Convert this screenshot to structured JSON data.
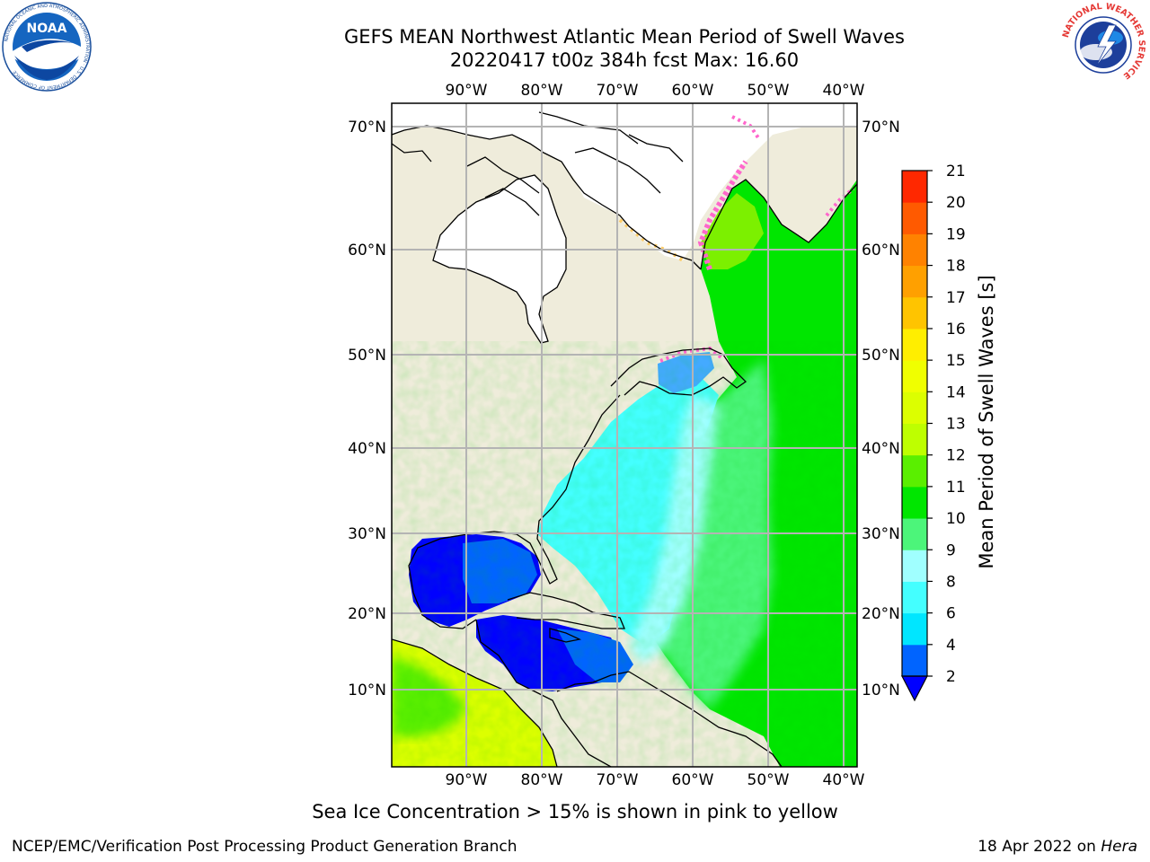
{
  "header": {
    "title_line1": "GEFS MEAN Northwest Atlantic Mean Period of Swell Waves",
    "title_line2": "20220417 t00z 384h fcst   Max: 16.60"
  },
  "logos": {
    "left": {
      "icon": "noaa-logo",
      "text": "NOAA"
    },
    "right": {
      "icon": "nws-logo",
      "text": "NATIONAL WEATHER SERVICE"
    }
  },
  "map": {
    "lon_ticks": [
      "90°W",
      "80°W",
      "70°W",
      "60°W",
      "50°W",
      "40°W"
    ],
    "lat_ticks": [
      "70°N",
      "60°N",
      "50°N",
      "40°N",
      "30°N",
      "20°N",
      "10°N"
    ],
    "colors": {
      "land": "#efecdb",
      "ice": "#ffffff",
      "grid": "#b4b4b4",
      "coast": "#000000"
    }
  },
  "colorbar": {
    "label": "Mean Period of Swell Waves [s]",
    "levels": [
      2,
      4,
      6,
      8,
      9,
      10,
      11,
      12,
      13,
      14,
      15,
      16,
      17,
      18,
      19,
      20,
      21
    ],
    "colors": [
      "#0064ff",
      "#00e6ff",
      "#44ffff",
      "#a0ffff",
      "#4cf57a",
      "#00e600",
      "#5aef00",
      "#beff00",
      "#dcff00",
      "#f0ff00",
      "#ffee00",
      "#ffc400",
      "#ffa000",
      "#ff8200",
      "#ff5a00",
      "#ff2800"
    ],
    "under_color": "#0000ff"
  },
  "notes": {
    "sea_ice": "Sea Ice Concentration > 15% is shown in pink to yellow",
    "footer_left": "NCEP/EMC/Verification Post Processing Product Generation Branch",
    "footer_date": "18 Apr 2022 on",
    "footer_machine": "Hera"
  }
}
